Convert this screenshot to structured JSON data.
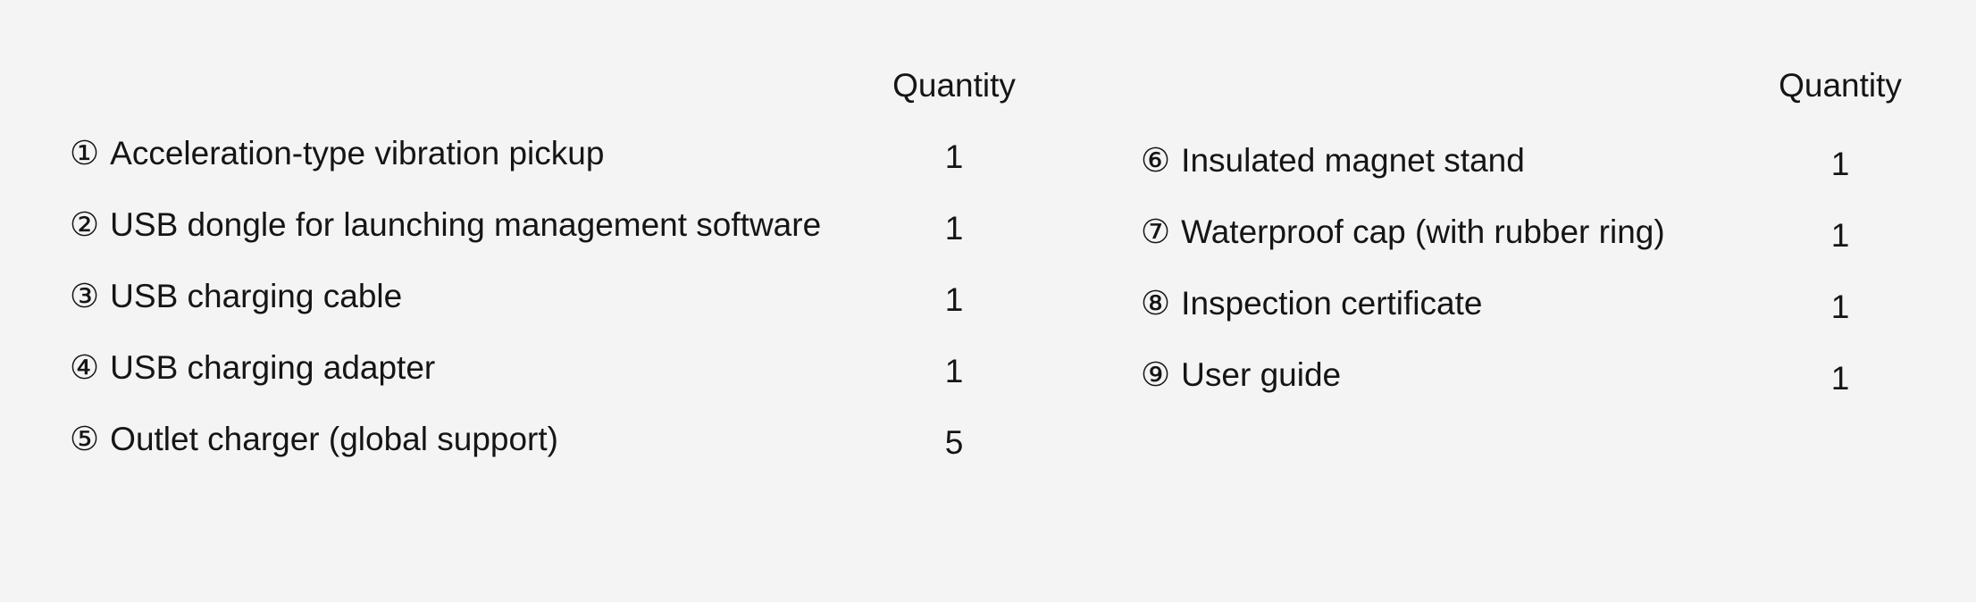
{
  "page": {
    "background_color": "#f5f4f5",
    "text_color": "#151515"
  },
  "table": {
    "quantity_header": "Quantity",
    "columns": [
      {
        "items": [
          {
            "marker": "①",
            "label": "Acceleration-type vibration pickup",
            "quantity": "1"
          },
          {
            "marker": "②",
            "label": "USB dongle for launching management software",
            "quantity": "1"
          },
          {
            "marker": "③",
            "label": "USB charging cable",
            "quantity": "1"
          },
          {
            "marker": "④",
            "label": "USB charging adapter",
            "quantity": "1"
          },
          {
            "marker": "⑤",
            "label": "Outlet charger (global support)",
            "quantity": "5"
          }
        ]
      },
      {
        "items": [
          {
            "marker": "⑥",
            "label": "Insulated magnet stand",
            "quantity": "1"
          },
          {
            "marker": "⑦",
            "label": "Waterproof cap (with rubber ring)",
            "quantity": "1"
          },
          {
            "marker": "⑧",
            "label": "Inspection certificate",
            "quantity": "1"
          },
          {
            "marker": "⑨",
            "label": "User guide",
            "quantity": "1"
          }
        ]
      }
    ]
  }
}
